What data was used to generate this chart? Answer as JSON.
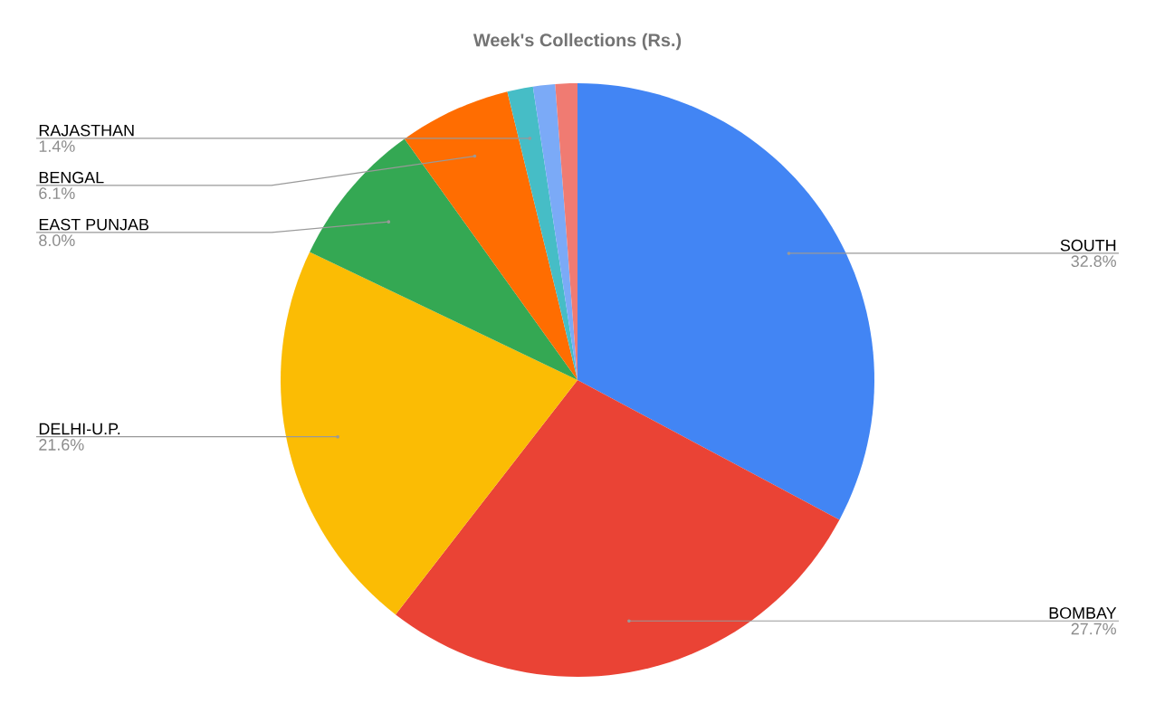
{
  "chart_data": {
    "type": "pie",
    "title": "Week's Collections (Rs.)",
    "categories": [
      "SOUTH",
      "BOMBAY",
      "DELHI-U.P.",
      "EAST PUNJAB",
      "BENGAL",
      "RAJASTHAN",
      null,
      null
    ],
    "values": [
      32.8,
      27.7,
      21.6,
      8.0,
      6.1,
      1.4,
      1.2,
      1.2
    ],
    "colors": [
      "#4285f4",
      "#ea4335",
      "#fbbc04",
      "#34a853",
      "#ff6d01",
      "#46bdc6",
      "#7baaf7",
      "#f07b72"
    ],
    "value_labels": [
      "32.8%",
      "27.7%",
      "21.6%",
      "8.0%",
      "6.1%",
      "1.4%",
      null,
      null
    ]
  }
}
